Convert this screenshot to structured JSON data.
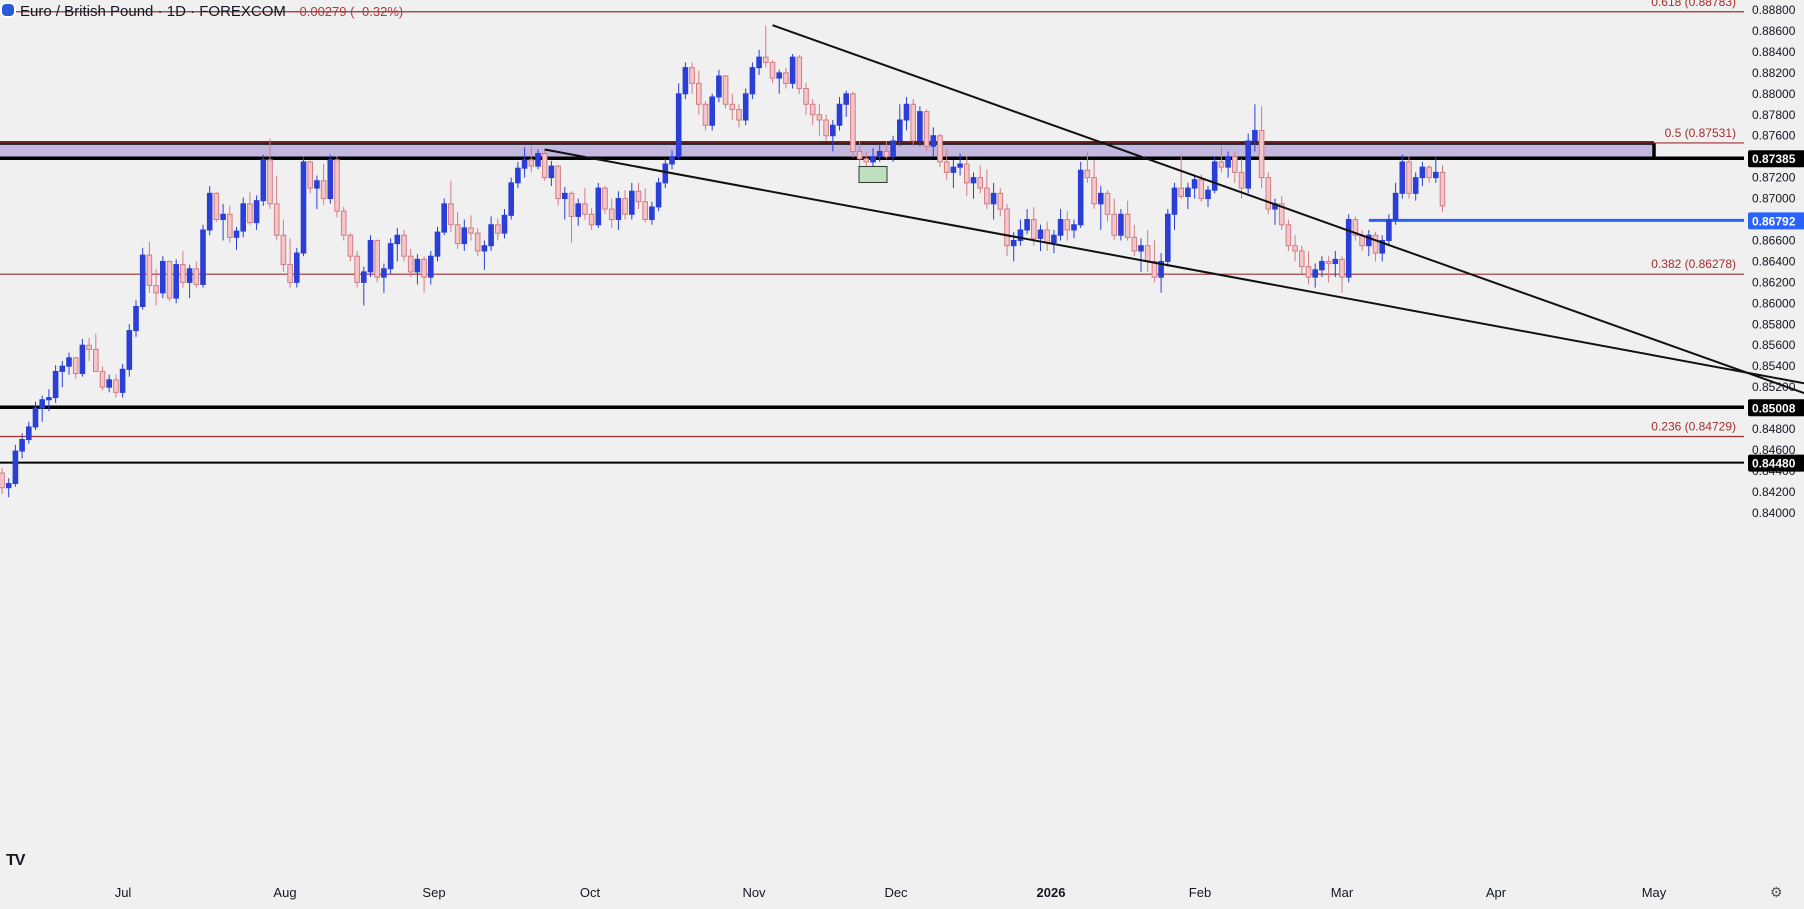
{
  "header": {
    "title": "Euro / British Pound · 1D · FOREXCOM",
    "change": "−0.00279 (−0.32%)"
  },
  "logo_text": "TV",
  "colors": {
    "bull": "#2a3fd6",
    "bear": "#d47c84",
    "zone": "#c3b8e0",
    "fib": "#a12e2e",
    "blue_line": "#2962ff"
  },
  "chart_data": {
    "type": "candlestick",
    "title": "Euro / British Pound · 1D · FOREXCOM",
    "ylim": [
      0.8393,
      0.8883
    ],
    "y_ticks": [
      "0.88800",
      "0.88600",
      "0.88400",
      "0.88200",
      "0.88000",
      "0.87800",
      "0.87600",
      "0.87400",
      "0.87200",
      "0.87000",
      "0.86800",
      "0.86600",
      "0.86400",
      "0.86200",
      "0.86000",
      "0.85800",
      "0.85600",
      "0.85400",
      "0.85200",
      "0.85000",
      "0.84800",
      "0.84600",
      "0.84400",
      "0.84200",
      "0.84000"
    ],
    "x_ticks": [
      "Jul",
      "Aug",
      "Sep",
      "Oct",
      "Nov",
      "Dec",
      "2026",
      "Feb",
      "Mar",
      "Apr",
      "May"
    ],
    "x_ticks_bold": [
      "2026"
    ],
    "price_tags": [
      {
        "value": 0.87385,
        "label": "0.87385",
        "style": "black"
      },
      {
        "value": 0.86792,
        "label": "0.86792",
        "style": "blue"
      },
      {
        "value": 0.85008,
        "label": "0.85008",
        "style": "black"
      },
      {
        "value": 0.8448,
        "label": "0.84480",
        "style": "black"
      }
    ],
    "fib_levels": [
      {
        "value": 0.88783,
        "label": "0.618 (0.88783)"
      },
      {
        "value": 0.87531,
        "label": "0.5 (0.87531)"
      },
      {
        "value": 0.86278,
        "label": "0.382 (0.86278)"
      },
      {
        "value": 0.84729,
        "label": "0.236 (0.84729)"
      }
    ],
    "zone": {
      "top": 0.87531,
      "bottom": 0.87385
    },
    "horizontal_lines": [
      0.85008,
      0.8448
    ],
    "candles": [
      [
        0.8438,
        0.8443,
        0.8418,
        0.8424
      ],
      [
        0.8424,
        0.8433,
        0.8415,
        0.8428
      ],
      [
        0.8428,
        0.8465,
        0.8425,
        0.8459
      ],
      [
        0.8459,
        0.8476,
        0.8452,
        0.847
      ],
      [
        0.847,
        0.8487,
        0.8466,
        0.8482
      ],
      [
        0.8482,
        0.8506,
        0.8479,
        0.85
      ],
      [
        0.85,
        0.8512,
        0.8487,
        0.8508
      ],
      [
        0.8508,
        0.8518,
        0.8497,
        0.851
      ],
      [
        0.851,
        0.8541,
        0.8505,
        0.8535
      ],
      [
        0.8535,
        0.8545,
        0.852,
        0.854
      ],
      [
        0.854,
        0.8553,
        0.8532,
        0.8548
      ],
      [
        0.8548,
        0.8549,
        0.8528,
        0.8533
      ],
      [
        0.8533,
        0.8566,
        0.853,
        0.856
      ],
      [
        0.856,
        0.8567,
        0.8545,
        0.8556
      ],
      [
        0.8556,
        0.8571,
        0.8538,
        0.8535
      ],
      [
        0.8535,
        0.854,
        0.8517,
        0.852
      ],
      [
        0.852,
        0.8532,
        0.8515,
        0.8527
      ],
      [
        0.8527,
        0.8532,
        0.851,
        0.8515
      ],
      [
        0.8515,
        0.8542,
        0.851,
        0.8537
      ],
      [
        0.8537,
        0.858,
        0.853,
        0.8574
      ],
      [
        0.8574,
        0.8603,
        0.8568,
        0.8597
      ],
      [
        0.8597,
        0.8653,
        0.8594,
        0.8646
      ],
      [
        0.8646,
        0.8659,
        0.861,
        0.8617
      ],
      [
        0.8617,
        0.8633,
        0.8598,
        0.861
      ],
      [
        0.861,
        0.8645,
        0.8605,
        0.864
      ],
      [
        0.864,
        0.8641,
        0.8602,
        0.8605
      ],
      [
        0.8605,
        0.8642,
        0.86,
        0.8637
      ],
      [
        0.8637,
        0.865,
        0.8615,
        0.862
      ],
      [
        0.862,
        0.8637,
        0.8605,
        0.8633
      ],
      [
        0.8633,
        0.864,
        0.8615,
        0.8618
      ],
      [
        0.8618,
        0.8675,
        0.8615,
        0.867
      ],
      [
        0.867,
        0.8712,
        0.8665,
        0.8705
      ],
      [
        0.8705,
        0.8706,
        0.8678,
        0.868
      ],
      [
        0.868,
        0.8695,
        0.866,
        0.8685
      ],
      [
        0.8685,
        0.8693,
        0.8658,
        0.8663
      ],
      [
        0.8663,
        0.8673,
        0.8651,
        0.8669
      ],
      [
        0.8669,
        0.8701,
        0.8663,
        0.8695
      ],
      [
        0.8695,
        0.8706,
        0.8675,
        0.8677
      ],
      [
        0.8677,
        0.8703,
        0.867,
        0.8698
      ],
      [
        0.8698,
        0.8742,
        0.8693,
        0.8737
      ],
      [
        0.8737,
        0.8757,
        0.869,
        0.8695
      ],
      [
        0.8695,
        0.8722,
        0.866,
        0.8665
      ],
      [
        0.8665,
        0.868,
        0.863,
        0.8637
      ],
      [
        0.8637,
        0.8662,
        0.8615,
        0.862
      ],
      [
        0.862,
        0.8653,
        0.8615,
        0.8648
      ],
      [
        0.8648,
        0.874,
        0.8645,
        0.8735
      ],
      [
        0.8735,
        0.8736,
        0.8705,
        0.871
      ],
      [
        0.871,
        0.8722,
        0.869,
        0.8717
      ],
      [
        0.8717,
        0.8733,
        0.8694,
        0.87
      ],
      [
        0.87,
        0.8742,
        0.8695,
        0.8737
      ],
      [
        0.8737,
        0.874,
        0.8682,
        0.8688
      ],
      [
        0.8688,
        0.8692,
        0.866,
        0.8665
      ],
      [
        0.8665,
        0.8667,
        0.864,
        0.8645
      ],
      [
        0.8645,
        0.865,
        0.8615,
        0.862
      ],
      [
        0.862,
        0.8635,
        0.8598,
        0.863
      ],
      [
        0.863,
        0.8665,
        0.8625,
        0.866
      ],
      [
        0.866,
        0.8661,
        0.862,
        0.8625
      ],
      [
        0.8625,
        0.8638,
        0.861,
        0.8633
      ],
      [
        0.8633,
        0.8662,
        0.8628,
        0.8657
      ],
      [
        0.8657,
        0.8672,
        0.864,
        0.8665
      ],
      [
        0.8665,
        0.867,
        0.864,
        0.8645
      ],
      [
        0.8645,
        0.8652,
        0.8625,
        0.863
      ],
      [
        0.863,
        0.8647,
        0.8618,
        0.8642
      ],
      [
        0.8642,
        0.8645,
        0.861,
        0.8625
      ],
      [
        0.8625,
        0.865,
        0.8618,
        0.8645
      ],
      [
        0.8645,
        0.8673,
        0.864,
        0.8668
      ],
      [
        0.8668,
        0.87,
        0.8665,
        0.8695
      ],
      [
        0.8695,
        0.8717,
        0.8668,
        0.8675
      ],
      [
        0.8675,
        0.8687,
        0.8652,
        0.8657
      ],
      [
        0.8657,
        0.868,
        0.865,
        0.8672
      ],
      [
        0.8672,
        0.8684,
        0.866,
        0.8667
      ],
      [
        0.8667,
        0.8672,
        0.8645,
        0.865
      ],
      [
        0.865,
        0.866,
        0.8632,
        0.8655
      ],
      [
        0.8655,
        0.8683,
        0.865,
        0.8675
      ],
      [
        0.8675,
        0.8681,
        0.866,
        0.8667
      ],
      [
        0.8667,
        0.869,
        0.8662,
        0.8684
      ],
      [
        0.8684,
        0.872,
        0.868,
        0.8715
      ],
      [
        0.8715,
        0.8735,
        0.871,
        0.8729
      ],
      [
        0.8729,
        0.8749,
        0.872,
        0.8737
      ],
      [
        0.8737,
        0.875,
        0.8725,
        0.8731
      ],
      [
        0.8731,
        0.8747,
        0.8728,
        0.8743
      ],
      [
        0.8743,
        0.8747,
        0.8717,
        0.872
      ],
      [
        0.872,
        0.8736,
        0.8712,
        0.8731
      ],
      [
        0.8731,
        0.8732,
        0.8693,
        0.87
      ],
      [
        0.87,
        0.8711,
        0.868,
        0.8705
      ],
      [
        0.8705,
        0.8707,
        0.8658,
        0.8683
      ],
      [
        0.8683,
        0.87,
        0.8674,
        0.8695
      ],
      [
        0.8695,
        0.871,
        0.868,
        0.8685
      ],
      [
        0.8685,
        0.8691,
        0.867,
        0.8675
      ],
      [
        0.8675,
        0.8715,
        0.8672,
        0.871
      ],
      [
        0.871,
        0.8712,
        0.8685,
        0.869
      ],
      [
        0.869,
        0.87,
        0.8672,
        0.868
      ],
      [
        0.868,
        0.8707,
        0.867,
        0.87
      ],
      [
        0.87,
        0.8708,
        0.868,
        0.8685
      ],
      [
        0.8685,
        0.8715,
        0.868,
        0.8707
      ],
      [
        0.8707,
        0.8715,
        0.869,
        0.8697
      ],
      [
        0.8697,
        0.871,
        0.8677,
        0.868
      ],
      [
        0.868,
        0.8697,
        0.8675,
        0.8692
      ],
      [
        0.8692,
        0.872,
        0.8688,
        0.8715
      ],
      [
        0.8715,
        0.8738,
        0.871,
        0.8733
      ],
      [
        0.8733,
        0.8746,
        0.8728,
        0.874
      ],
      [
        0.874,
        0.881,
        0.8737,
        0.88
      ],
      [
        0.88,
        0.883,
        0.8795,
        0.8825
      ],
      [
        0.8825,
        0.883,
        0.88,
        0.881
      ],
      [
        0.881,
        0.8822,
        0.878,
        0.879
      ],
      [
        0.879,
        0.8793,
        0.8765,
        0.877
      ],
      [
        0.877,
        0.88,
        0.8765,
        0.8797
      ],
      [
        0.8797,
        0.8823,
        0.8792,
        0.8817
      ],
      [
        0.8817,
        0.8818,
        0.8786,
        0.879
      ],
      [
        0.879,
        0.88,
        0.8775,
        0.8785
      ],
      [
        0.8785,
        0.879,
        0.8768,
        0.8775
      ],
      [
        0.8775,
        0.8805,
        0.877,
        0.88
      ],
      [
        0.88,
        0.883,
        0.8795,
        0.8825
      ],
      [
        0.8825,
        0.8842,
        0.8818,
        0.8835
      ],
      [
        0.8835,
        0.8865,
        0.8825,
        0.883
      ],
      [
        0.883,
        0.8832,
        0.881,
        0.8815
      ],
      [
        0.8815,
        0.8823,
        0.88,
        0.882
      ],
      [
        0.882,
        0.8825,
        0.8805,
        0.881
      ],
      [
        0.881,
        0.8838,
        0.8805,
        0.8835
      ],
      [
        0.8835,
        0.8837,
        0.88,
        0.8805
      ],
      [
        0.8805,
        0.881,
        0.878,
        0.879
      ],
      [
        0.879,
        0.8795,
        0.877,
        0.878
      ],
      [
        0.878,
        0.879,
        0.876,
        0.8775
      ],
      [
        0.8775,
        0.878,
        0.8755,
        0.876
      ],
      [
        0.876,
        0.8775,
        0.8745,
        0.877
      ],
      [
        0.877,
        0.8797,
        0.8765,
        0.879
      ],
      [
        0.879,
        0.8803,
        0.8778,
        0.88
      ],
      [
        0.88,
        0.8802,
        0.8739,
        0.8745
      ],
      [
        0.8745,
        0.8755,
        0.8725,
        0.8738
      ],
      [
        0.8738,
        0.8745,
        0.8728,
        0.8735
      ],
      [
        0.8735,
        0.8748,
        0.8728,
        0.874
      ],
      [
        0.874,
        0.8752,
        0.8735,
        0.8745
      ],
      [
        0.8745,
        0.8755,
        0.8738,
        0.874
      ],
      [
        0.874,
        0.876,
        0.8735,
        0.8755
      ],
      [
        0.8755,
        0.879,
        0.875,
        0.8775
      ],
      [
        0.8775,
        0.8797,
        0.8765,
        0.879
      ],
      [
        0.879,
        0.8795,
        0.875,
        0.8755
      ],
      [
        0.8755,
        0.8788,
        0.875,
        0.8783
      ],
      [
        0.8783,
        0.8785,
        0.8745,
        0.875
      ],
      [
        0.875,
        0.8768,
        0.874,
        0.876
      ],
      [
        0.876,
        0.8762,
        0.873,
        0.8735
      ],
      [
        0.8735,
        0.8748,
        0.8718,
        0.8725
      ],
      [
        0.8725,
        0.8737,
        0.871,
        0.873
      ],
      [
        0.873,
        0.8743,
        0.8722,
        0.8733
      ],
      [
        0.8733,
        0.874,
        0.8702,
        0.8715
      ],
      [
        0.8715,
        0.8725,
        0.87,
        0.872
      ],
      [
        0.872,
        0.8732,
        0.8705,
        0.871
      ],
      [
        0.871,
        0.8728,
        0.869,
        0.8695
      ],
      [
        0.8695,
        0.8715,
        0.868,
        0.8705
      ],
      [
        0.8705,
        0.871,
        0.8683,
        0.869
      ],
      [
        0.869,
        0.8695,
        0.8645,
        0.8655
      ],
      [
        0.8655,
        0.8668,
        0.864,
        0.866
      ],
      [
        0.866,
        0.868,
        0.8655,
        0.867
      ],
      [
        0.867,
        0.869,
        0.8666,
        0.868
      ],
      [
        0.868,
        0.8692,
        0.8655,
        0.8662
      ],
      [
        0.8662,
        0.8675,
        0.865,
        0.867
      ],
      [
        0.867,
        0.8678,
        0.865,
        0.8658
      ],
      [
        0.8658,
        0.867,
        0.8648,
        0.8665
      ],
      [
        0.8665,
        0.869,
        0.866,
        0.868
      ],
      [
        0.868,
        0.8688,
        0.866,
        0.867
      ],
      [
        0.867,
        0.868,
        0.8662,
        0.8675
      ],
      [
        0.8675,
        0.8735,
        0.8672,
        0.8727
      ],
      [
        0.8727,
        0.8745,
        0.8715,
        0.872
      ],
      [
        0.872,
        0.8737,
        0.869,
        0.8695
      ],
      [
        0.8695,
        0.8712,
        0.867,
        0.8705
      ],
      [
        0.8705,
        0.8708,
        0.8678,
        0.8685
      ],
      [
        0.8685,
        0.87,
        0.866,
        0.8665
      ],
      [
        0.8665,
        0.869,
        0.866,
        0.8685
      ],
      [
        0.8685,
        0.8698,
        0.866,
        0.8663
      ],
      [
        0.8663,
        0.8675,
        0.8645,
        0.865
      ],
      [
        0.865,
        0.8662,
        0.863,
        0.8655
      ],
      [
        0.8655,
        0.867,
        0.863,
        0.864
      ],
      [
        0.864,
        0.866,
        0.862,
        0.8625
      ],
      [
        0.8625,
        0.8648,
        0.861,
        0.864
      ],
      [
        0.864,
        0.869,
        0.8635,
        0.8685
      ],
      [
        0.8685,
        0.8715,
        0.867,
        0.871
      ],
      [
        0.871,
        0.8742,
        0.87,
        0.8702
      ],
      [
        0.8702,
        0.8715,
        0.869,
        0.871
      ],
      [
        0.871,
        0.8722,
        0.87,
        0.8718
      ],
      [
        0.8718,
        0.8723,
        0.8697,
        0.87
      ],
      [
        0.87,
        0.8712,
        0.8692,
        0.8708
      ],
      [
        0.8708,
        0.874,
        0.8705,
        0.8735
      ],
      [
        0.8735,
        0.875,
        0.8725,
        0.873
      ],
      [
        0.873,
        0.8745,
        0.872,
        0.874
      ],
      [
        0.874,
        0.8745,
        0.8715,
        0.8725
      ],
      [
        0.8725,
        0.8738,
        0.87,
        0.871
      ],
      [
        0.871,
        0.8762,
        0.8705,
        0.8755
      ],
      [
        0.8755,
        0.879,
        0.8745,
        0.8765
      ],
      [
        0.8765,
        0.8788,
        0.871,
        0.872
      ],
      [
        0.872,
        0.8725,
        0.8685,
        0.869
      ],
      [
        0.869,
        0.87,
        0.8675,
        0.8695
      ],
      [
        0.8695,
        0.8702,
        0.867,
        0.8675
      ],
      [
        0.8675,
        0.868,
        0.865,
        0.8655
      ],
      [
        0.8655,
        0.8665,
        0.864,
        0.865
      ],
      [
        0.865,
        0.8655,
        0.8628,
        0.8635
      ],
      [
        0.8635,
        0.865,
        0.8618,
        0.8625
      ],
      [
        0.8625,
        0.8638,
        0.8615,
        0.8632
      ],
      [
        0.8632,
        0.8645,
        0.8625,
        0.864
      ],
      [
        0.864,
        0.8645,
        0.862,
        0.8638
      ],
      [
        0.8638,
        0.865,
        0.8625,
        0.8642
      ],
      [
        0.8642,
        0.8645,
        0.861,
        0.8625
      ],
      [
        0.8625,
        0.8685,
        0.862,
        0.868
      ],
      [
        0.868,
        0.8683,
        0.866,
        0.8665
      ],
      [
        0.8665,
        0.867,
        0.865,
        0.8655
      ],
      [
        0.8655,
        0.867,
        0.8645,
        0.8665
      ],
      [
        0.8665,
        0.8668,
        0.864,
        0.8648
      ],
      [
        0.8648,
        0.8665,
        0.864,
        0.866
      ],
      [
        0.866,
        0.8685,
        0.8655,
        0.868
      ],
      [
        0.868,
        0.8715,
        0.8675,
        0.8705
      ],
      [
        0.8705,
        0.8742,
        0.87,
        0.8735
      ],
      [
        0.8735,
        0.874,
        0.87,
        0.8705
      ],
      [
        0.8705,
        0.8725,
        0.8698,
        0.872
      ],
      [
        0.872,
        0.8735,
        0.8712,
        0.873
      ],
      [
        0.873,
        0.8732,
        0.8715,
        0.872
      ],
      [
        0.872,
        0.874,
        0.8715,
        0.8725
      ],
      [
        0.8725,
        0.8732,
        0.8687,
        0.8693
      ]
    ],
    "trendlines": [
      {
        "from": {
          "bar": 115,
          "value": 0.88655
        },
        "to": {
          "bar": 286,
          "value": 0.84755
        }
      },
      {
        "from": {
          "bar": 81,
          "value": 0.87468
        },
        "to": {
          "bar": 286,
          "value": 0.85035
        }
      }
    ],
    "blue_level": {
      "value": 0.86792,
      "from_bar": 204
    },
    "markers": [
      {
        "bar": 130,
        "value": 0.8723,
        "shape": "rect",
        "color": "#bfe0bf"
      }
    ]
  }
}
